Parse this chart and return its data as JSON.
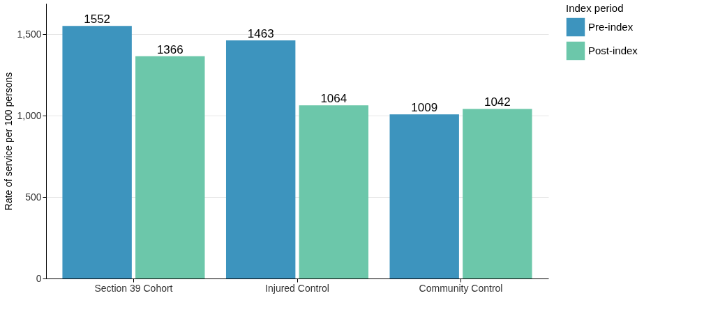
{
  "chart_data": {
    "type": "bar",
    "ylabel": "Rate of service per 100 persons",
    "legend_title": "Index period",
    "categories": [
      "Section 39 Cohort",
      "Injured Control",
      "Community Control"
    ],
    "series": [
      {
        "name": "Pre-index",
        "color": "#3d94be",
        "values": [
          1552,
          1463,
          1009
        ]
      },
      {
        "name": "Post-index",
        "color": "#6cc7aa",
        "values": [
          1366,
          1064,
          1042
        ]
      }
    ],
    "ylim": [
      0,
      1690
    ],
    "yticks": [
      0,
      500,
      {
        "value": 1000,
        "label": "1,000"
      },
      {
        "value": 1500,
        "label": "1,500"
      }
    ],
    "grid": "y",
    "legend": "right",
    "data_labels": true
  }
}
